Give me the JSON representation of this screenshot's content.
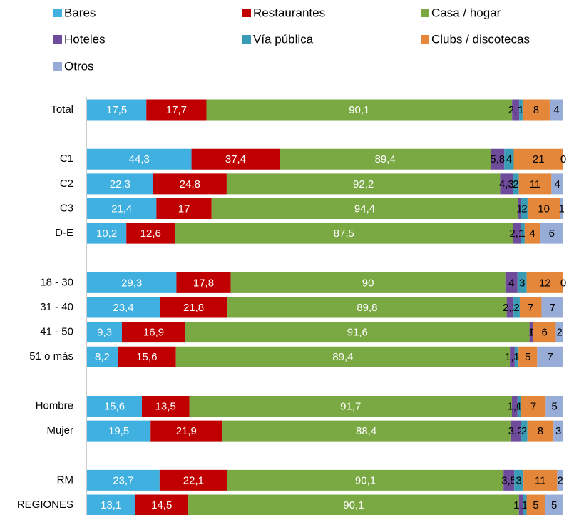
{
  "chart_data": {
    "type": "stacked_bar_horizontal_100",
    "categories": [
      "Total",
      null,
      "C1",
      "C2",
      "C3",
      "D-E",
      null,
      "18 - 30",
      "31 - 40",
      "41 - 50",
      "51 o más",
      null,
      "Hombre",
      "Mujer",
      null,
      "RM",
      "REGIONES"
    ],
    "series": [
      {
        "name": "Bares",
        "color": "#3fb0df",
        "values": [
          17.5,
          null,
          44.3,
          22.3,
          21.4,
          10.2,
          null,
          29.3,
          23.4,
          9.3,
          8.2,
          null,
          15.6,
          19.5,
          null,
          23.7,
          13.1
        ],
        "value_labels": [
          "17,5",
          null,
          "44,3",
          "22,3",
          "21,4",
          "10,2",
          null,
          "29,3",
          "23,4",
          "9,3",
          "8,2",
          null,
          "15,6",
          "19,5",
          null,
          "23,7",
          "13,1"
        ]
      },
      {
        "name": "Restaurantes",
        "color": "#c00000",
        "values": [
          17.7,
          null,
          37.4,
          24.8,
          17,
          12.6,
          null,
          17.8,
          21.8,
          16.9,
          15.6,
          null,
          13.5,
          21.9,
          null,
          22.1,
          14.5
        ],
        "value_labels": [
          "17,7",
          null,
          "37,4",
          "24,8",
          "17",
          "12,6",
          null,
          "17,8",
          "21,8",
          "16,9",
          "15,6",
          null,
          "13,5",
          "21,9",
          null,
          "22,1",
          "14,5"
        ]
      },
      {
        "name": "Casa / hogar",
        "color": "#7aa843",
        "values": [
          90.1,
          null,
          89.4,
          92.2,
          94.4,
          87.5,
          null,
          90,
          89.8,
          91.6,
          89.4,
          null,
          91.7,
          88.4,
          null,
          90.1,
          90.1
        ],
        "value_labels": [
          "90,1",
          null,
          "89,4",
          "92,2",
          "94,4",
          "87,5",
          null,
          "90",
          "89,8",
          "91,6",
          "89,4",
          null,
          "91,7",
          "88,4",
          null,
          "90,1",
          "90,1"
        ]
      },
      {
        "name": "Hoteles",
        "color": "#6f4c9b",
        "values": [
          2.1,
          null,
          5.8,
          4.3,
          1,
          2.1,
          null,
          4,
          2.2,
          1,
          1.3,
          null,
          1.6,
          3.2,
          null,
          3.5,
          1.1
        ],
        "value_labels": [
          "2,1",
          null,
          "5,8",
          "4,3",
          "1",
          "2,1",
          null,
          "4",
          "2,2",
          "1",
          "1,3",
          null,
          "1,6",
          "3,2",
          null,
          "3,5",
          "1,1"
        ]
      },
      {
        "name": "Vía pública",
        "color": "#3a9bb5",
        "values": [
          1,
          null,
          4,
          2,
          2,
          1,
          null,
          3,
          2,
          0,
          1,
          null,
          1,
          2,
          null,
          3,
          1
        ],
        "value_labels": [
          "1",
          null,
          "4",
          "2",
          "2",
          "1",
          null,
          "3",
          "2",
          "0",
          "1",
          null,
          "1",
          "2",
          null,
          "3",
          "1"
        ]
      },
      {
        "name": "Clubs / discotecas",
        "color": "#e4873a",
        "values": [
          8,
          null,
          21,
          11,
          10,
          4,
          null,
          12,
          7,
          6,
          5,
          null,
          7,
          8,
          null,
          11,
          5
        ],
        "value_labels": [
          "8",
          null,
          "21",
          "11",
          "10",
          "4",
          null,
          "12",
          "7",
          "6",
          "5",
          null,
          "7",
          "8",
          null,
          "11",
          "5"
        ]
      },
      {
        "name": "Otros",
        "color": "#97add8",
        "values": [
          4,
          null,
          0,
          4,
          1,
          6,
          null,
          0,
          7,
          2,
          7,
          null,
          5,
          3,
          null,
          2,
          5
        ],
        "value_labels": [
          "4",
          null,
          "0",
          "4",
          "1",
          "6",
          null,
          "0",
          "7",
          "2",
          "7",
          null,
          "5",
          "3",
          null,
          "2",
          "5"
        ]
      }
    ]
  }
}
